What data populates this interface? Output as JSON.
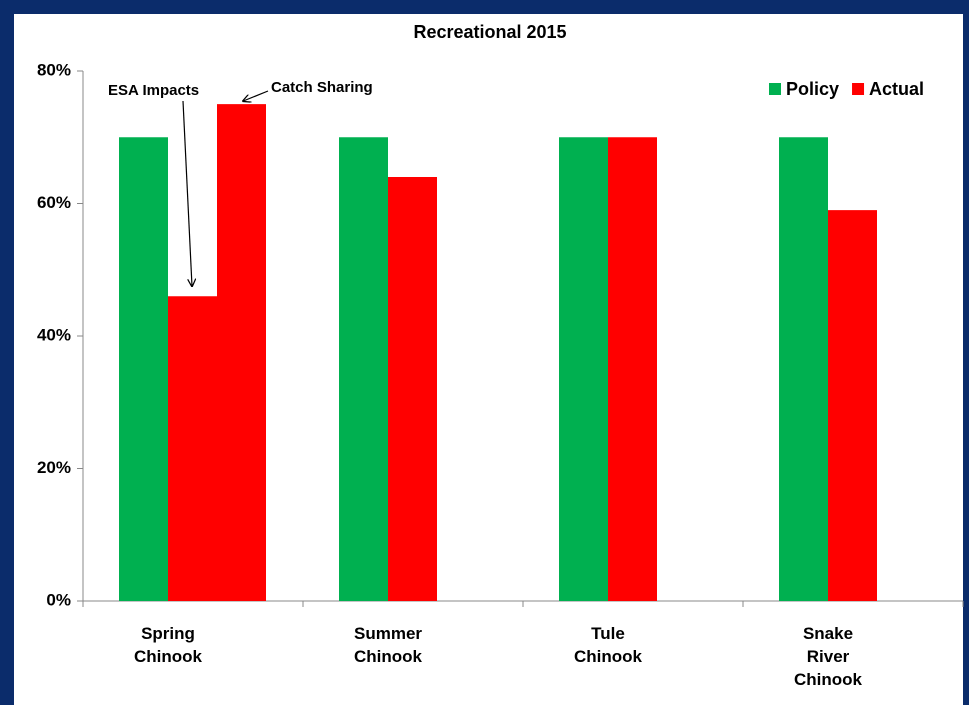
{
  "chart_data": {
    "type": "bar",
    "title": "Recreational 2015",
    "categories": [
      "Spring Chinook",
      "Summer Chinook",
      "Tule Chinook",
      "Snake River Chinook"
    ],
    "series": [
      {
        "name": "Policy",
        "color": "#00b050",
        "values": [
          70,
          70,
          70,
          70
        ]
      },
      {
        "name": "Actual",
        "color": "#ff0000",
        "values": [
          46,
          64,
          70,
          59
        ]
      },
      {
        "name": "Catch Sharing",
        "color": "#ff0000",
        "values": [
          75,
          null,
          null,
          null
        ],
        "show_in_legend": false
      }
    ],
    "annotations": [
      "ESA Impacts"
    ],
    "ylim": [
      0,
      80
    ],
    "yticks": [
      {
        "value": 0,
        "label": "0%"
      },
      {
        "value": 20,
        "label": "20%"
      },
      {
        "value": 40,
        "label": "40%"
      },
      {
        "value": 60,
        "label": "60%"
      },
      {
        "value": 80,
        "label": "80%"
      }
    ],
    "legend": "top-right",
    "grid": false
  }
}
